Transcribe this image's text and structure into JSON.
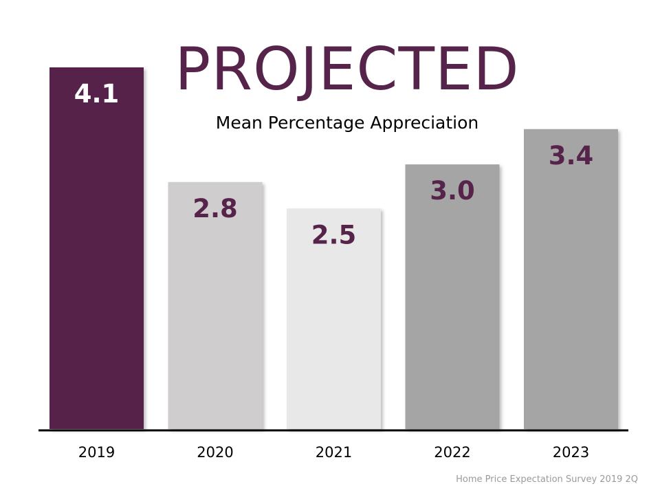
{
  "chart_data": {
    "type": "bar",
    "title": "PROJECTED",
    "subtitle": "Mean Percentage Appreciation",
    "categories": [
      "2019",
      "2020",
      "2021",
      "2022",
      "2023"
    ],
    "values": [
      4.1,
      2.8,
      2.5,
      3.0,
      3.4
    ],
    "value_labels": [
      "4.1",
      "2.8",
      "2.5",
      "3.0",
      "3.4"
    ],
    "bar_colors": [
      "#56234a",
      "#cfcdce",
      "#e8e8e8",
      "#a6a5a6",
      "#a6a5a6"
    ],
    "label_colors": [
      "#ffffff",
      "#56234a",
      "#56234a",
      "#56234a",
      "#56234a"
    ],
    "xlabel": "",
    "ylabel": "",
    "ylim": [
      0,
      4.1
    ],
    "grid": false,
    "legend": "none"
  },
  "source": "Home Price Expectation Survey 2019 2Q",
  "colors": {
    "accent": "#56234a",
    "axis": "#000000",
    "source_text": "#9a9a9a"
  }
}
